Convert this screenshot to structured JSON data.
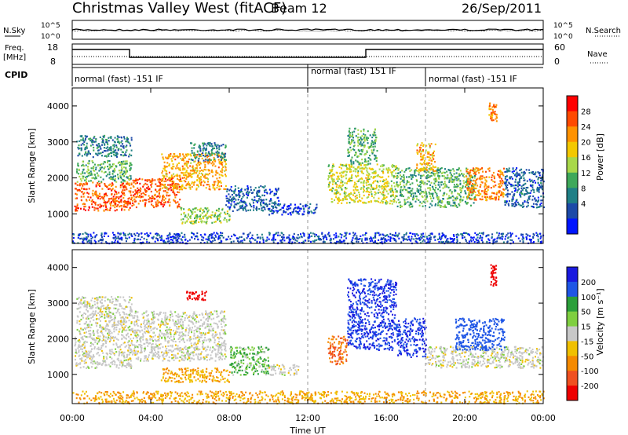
{
  "header": {
    "station": "Christmas Valley West (fitACF)",
    "beam": "Beam 12",
    "date": "26/Sep/2011"
  },
  "panels": {
    "nsky": {
      "left_label": "N.Sky",
      "right_label": "N.Search",
      "left_ticks": [
        "10^5",
        "10^0"
      ],
      "right_ticks": [
        "10^5",
        "10^0"
      ]
    },
    "freq": {
      "left_label_1": "Freq.",
      "left_label_2": "[MHz]",
      "right_label": "Nave",
      "left_ticks": [
        "18",
        "8"
      ],
      "right_ticks": [
        "60",
        "0"
      ]
    },
    "cpid": {
      "label": "CPID",
      "segments": [
        {
          "label": "normal (fast) -151 IF",
          "start_hour": 0,
          "end_hour": 12
        },
        {
          "label": "normal (fast) 151 IF",
          "start_hour": 12,
          "end_hour": 18
        },
        {
          "label": "normal (fast) -151 IF",
          "start_hour": 18,
          "end_hour": 24
        }
      ]
    }
  },
  "power_colorbar": {
    "label": "Power [dB]",
    "ticks": [
      "28",
      "24",
      "20",
      "16",
      "12",
      "8",
      "4"
    ],
    "colors": [
      "#ff0000",
      "#ff4a00",
      "#ff9200",
      "#f3c800",
      "#a8d84a",
      "#3ea85a",
      "#1f7f86",
      "#1c4aa8",
      "#0015ff"
    ]
  },
  "velocity_colorbar": {
    "label": "Velocity [m s⁻¹]",
    "ticks": [
      "200",
      "100",
      "50",
      "15",
      "-15",
      "-50",
      "-100",
      "-200"
    ],
    "colors": [
      "#1a1adf",
      "#1f56e6",
      "#2b9f3a",
      "#7fcf40",
      "#c8c8c8",
      "#f0c000",
      "#f58a00",
      "#f05020",
      "#ee0000"
    ]
  },
  "chart_data": [
    {
      "type": "heatmap",
      "ylabel": "Slant Range [km]",
      "ylim": [
        180,
        4500
      ],
      "yticks": [
        1000,
        2000,
        3000,
        4000
      ],
      "xlim": [
        0,
        24
      ],
      "quantity": "Power [dB]",
      "regions": [
        {
          "x0": 0.1,
          "x1": 3.0,
          "y0": 1100,
          "y1": 1900,
          "level": 26
        },
        {
          "x0": 0.2,
          "x1": 3.0,
          "y0": 1900,
          "y1": 2500,
          "level": 14
        },
        {
          "x0": 0.2,
          "x1": 3.0,
          "y0": 2600,
          "y1": 3200,
          "level": 10
        },
        {
          "x0": 3.0,
          "x1": 5.5,
          "y0": 1200,
          "y1": 2000,
          "level": 26
        },
        {
          "x0": 4.5,
          "x1": 7.8,
          "y0": 1700,
          "y1": 2700,
          "level": 22
        },
        {
          "x0": 6.0,
          "x1": 7.8,
          "y0": 2500,
          "y1": 3000,
          "level": 10
        },
        {
          "x0": 5.5,
          "x1": 8.0,
          "y0": 750,
          "y1": 1200,
          "level": 16
        },
        {
          "x0": 7.8,
          "x1": 10.5,
          "y0": 1100,
          "y1": 1800,
          "level": 8
        },
        {
          "x0": 10.0,
          "x1": 12.5,
          "y0": 1000,
          "y1": 1300,
          "level": 6
        },
        {
          "x0": 0.0,
          "x1": 24.0,
          "y0": 200,
          "y1": 500,
          "level": 6
        },
        {
          "x0": 13.0,
          "x1": 16.5,
          "y0": 1300,
          "y1": 2400,
          "level": 18
        },
        {
          "x0": 14.0,
          "x1": 15.5,
          "y0": 2400,
          "y1": 3400,
          "level": 14
        },
        {
          "x0": 16.5,
          "x1": 20.5,
          "y0": 1200,
          "y1": 2300,
          "level": 14
        },
        {
          "x0": 17.5,
          "x1": 18.5,
          "y0": 2200,
          "y1": 3000,
          "level": 22
        },
        {
          "x0": 20.0,
          "x1": 22.0,
          "y0": 1400,
          "y1": 2300,
          "level": 24
        },
        {
          "x0": 22.0,
          "x1": 24.0,
          "y0": 1200,
          "y1": 2300,
          "level": 8
        },
        {
          "x0": 21.2,
          "x1": 21.6,
          "y0": 3600,
          "y1": 4100,
          "level": 24
        }
      ]
    },
    {
      "type": "heatmap",
      "ylabel": "Slant Range [km]",
      "xlabel": "Time UT",
      "ylim": [
        180,
        4500
      ],
      "yticks": [
        1000,
        2000,
        3000,
        4000
      ],
      "xlim": [
        0,
        24
      ],
      "xticks": [
        "00:00",
        "04:00",
        "08:00",
        "12:00",
        "16:00",
        "20:00",
        "00:00"
      ],
      "quantity": "Velocity [m s⁻¹]",
      "regions": [
        {
          "x0": 0.1,
          "x1": 3.0,
          "y0": 1200,
          "y1": 2100,
          "level": 0
        },
        {
          "x0": 0.2,
          "x1": 3.0,
          "y0": 2100,
          "y1": 3200,
          "level": 0
        },
        {
          "x0": 3.0,
          "x1": 7.8,
          "y0": 1400,
          "y1": 2800,
          "level": 0
        },
        {
          "x0": 5.8,
          "x1": 6.8,
          "y0": 3100,
          "y1": 3350,
          "level": -200
        },
        {
          "x0": 4.5,
          "x1": 8.0,
          "y0": 800,
          "y1": 1200,
          "level": -50
        },
        {
          "x0": 8.0,
          "x1": 10.0,
          "y0": 1000,
          "y1": 1800,
          "level": 30
        },
        {
          "x0": 10.0,
          "x1": 11.5,
          "y0": 1000,
          "y1": 1300,
          "level": 0
        },
        {
          "x0": 0.0,
          "x1": 24.0,
          "y0": 200,
          "y1": 550,
          "level": -50
        },
        {
          "x0": 13.0,
          "x1": 14.0,
          "y0": 1300,
          "y1": 2100,
          "level": -100
        },
        {
          "x0": 14.0,
          "x1": 16.5,
          "y0": 1700,
          "y1": 3700,
          "level": 150
        },
        {
          "x0": 16.5,
          "x1": 18.0,
          "y0": 1500,
          "y1": 2600,
          "level": 150
        },
        {
          "x0": 18.0,
          "x1": 24.0,
          "y0": 1200,
          "y1": 1800,
          "level": 0
        },
        {
          "x0": 19.5,
          "x1": 22.0,
          "y0": 1700,
          "y1": 2600,
          "level": 100
        },
        {
          "x0": 21.3,
          "x1": 21.6,
          "y0": 3500,
          "y1": 4100,
          "level": -200
        }
      ]
    }
  ]
}
